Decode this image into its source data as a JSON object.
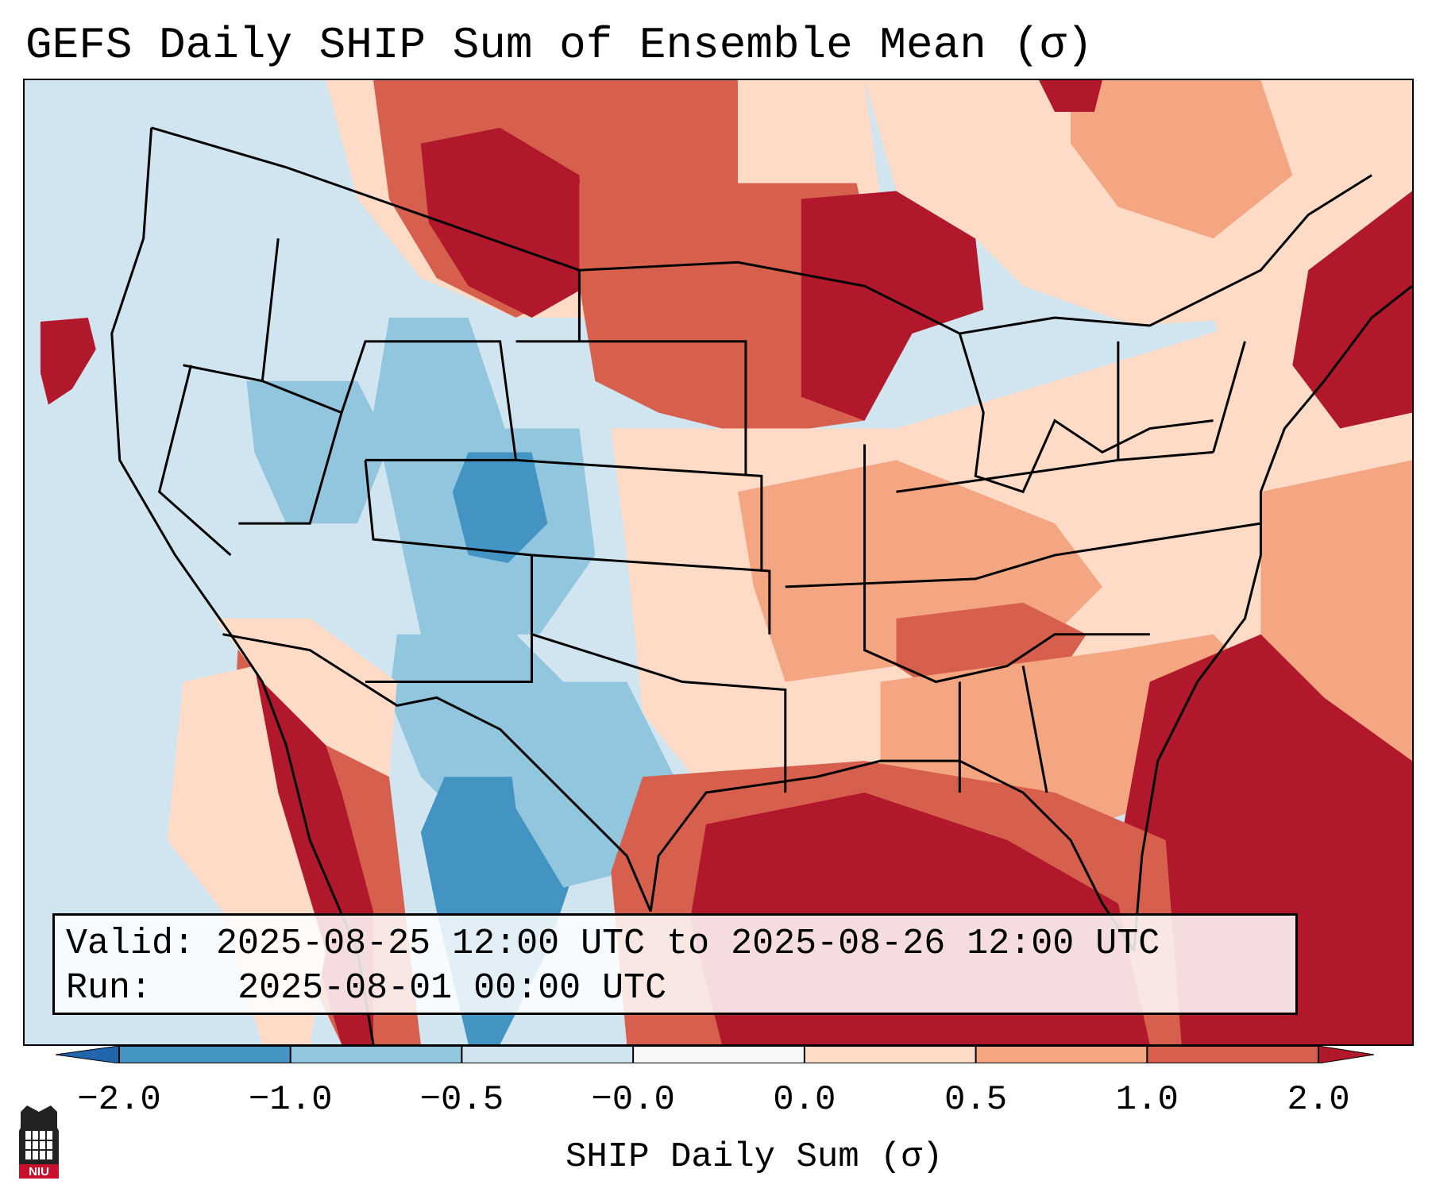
{
  "title": "GEFS Daily SHIP Sum of Ensemble Mean (σ)",
  "info": {
    "valid_label": "Valid:",
    "valid_value": "2025-08-25 12:00 UTC to 2025-08-26 12:00 UTC",
    "run_label": "Run:",
    "run_value": "2025-08-01 00:00 UTC"
  },
  "colorbar": {
    "label": "SHIP Daily Sum (σ)",
    "ticks": [
      "−2.0",
      "−1.0",
      "−0.5",
      "−0.0",
      "0.0",
      "0.5",
      "1.0",
      "2.0"
    ],
    "colors": [
      "#4393c3",
      "#92c5de",
      "#d1e5f0",
      "#f7f7f7",
      "#fddbc7",
      "#f4a582",
      "#d6604d",
      "#b2182b"
    ],
    "extend_low_color": "#2166ac",
    "extend_high_color": "#b2182b"
  },
  "logo": {
    "text": "NIU",
    "colors": {
      "tower": "#222222",
      "banner": "#c8102e"
    }
  },
  "map_colors": {
    "ocean": "#d1e5f0",
    "neg_strong": "#4393c3",
    "neg_mid": "#92c5de",
    "neutral": "#f7f7f7",
    "pos_weak": "#fddbc7",
    "pos_mid": "#f4a582",
    "pos_strong": "#d6604d",
    "pos_max": "#b2182b"
  }
}
